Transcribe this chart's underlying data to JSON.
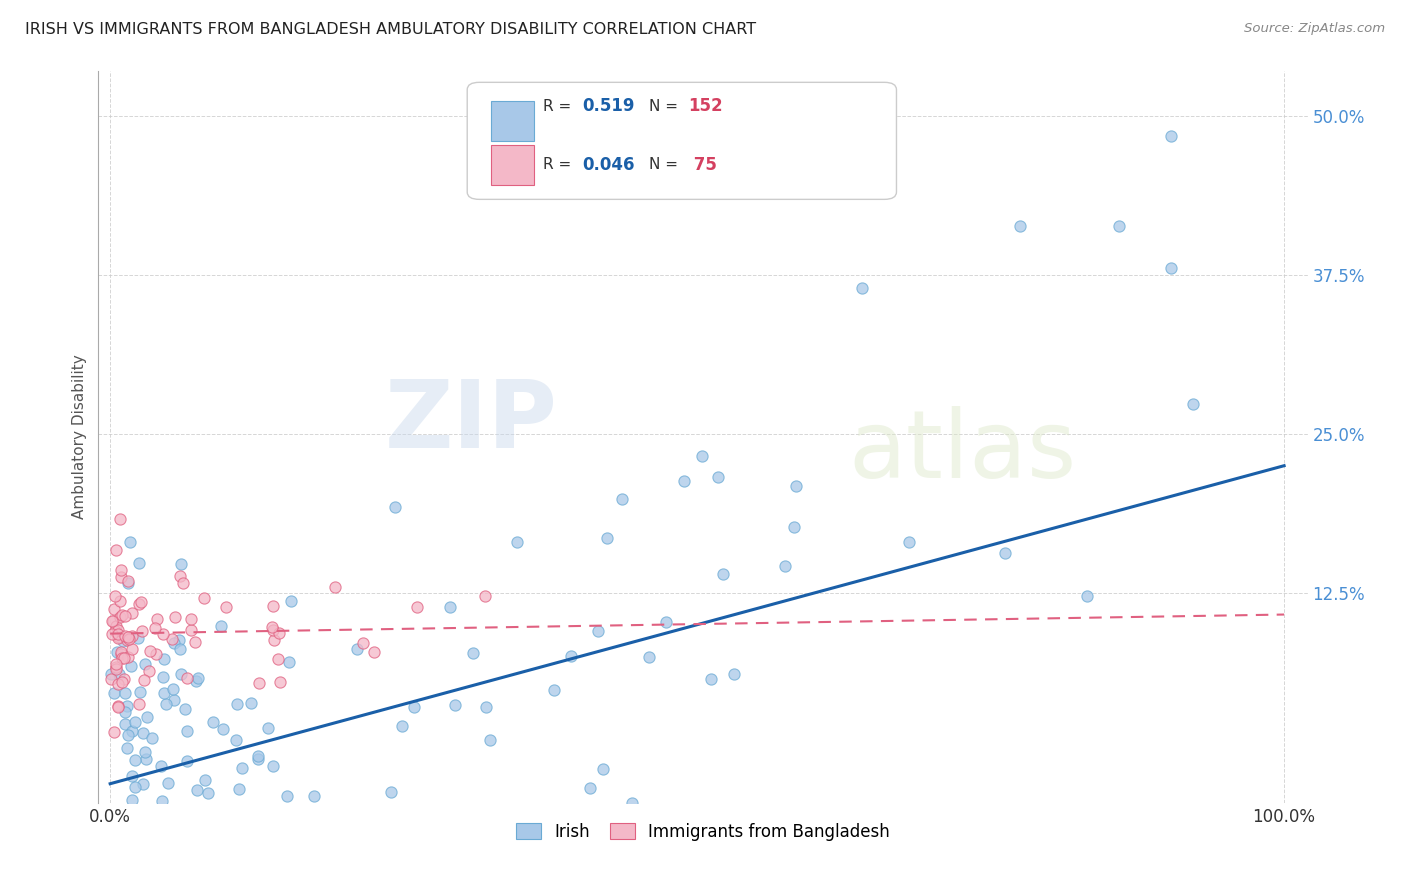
{
  "title": "IRISH VS IMMIGRANTS FROM BANGLADESH AMBULATORY DISABILITY CORRELATION CHART",
  "source": "Source: ZipAtlas.com",
  "ylabel": "Ambulatory Disability",
  "watermark_zip": "ZIP",
  "watermark_atlas": "atlas",
  "background_color": "#ffffff",
  "grid_color": "#cccccc",
  "irish_color": "#a8c8e8",
  "irish_edge_color": "#6aaad4",
  "bang_color": "#f4b8c8",
  "bang_edge_color": "#e06080",
  "irish_line_color": "#1a5fa8",
  "bang_line_color": "#e06080",
  "ytick_color": "#4a8fd4",
  "xtick_color": "#333333",
  "irish_line_x0": 0.0,
  "irish_line_y0": -0.025,
  "irish_line_x1": 1.0,
  "irish_line_y1": 0.225,
  "bang_line_x0": 0.0,
  "bang_line_y0": 0.093,
  "bang_line_x1": 1.0,
  "bang_line_y1": 0.108,
  "xlim_min": -0.01,
  "xlim_max": 1.02,
  "ylim_min": -0.04,
  "ylim_max": 0.535,
  "yticks": [
    0.125,
    0.25,
    0.375,
    0.5
  ],
  "ytick_labels": [
    "12.5%",
    "25.0%",
    "37.5%",
    "50.0%"
  ],
  "xticks": [
    0.0,
    1.0
  ],
  "xtick_labels": [
    "0.0%",
    "100.0%"
  ],
  "R_irish": "0.519",
  "N_irish": "152",
  "R_bang": "0.046",
  "N_bang": "75"
}
